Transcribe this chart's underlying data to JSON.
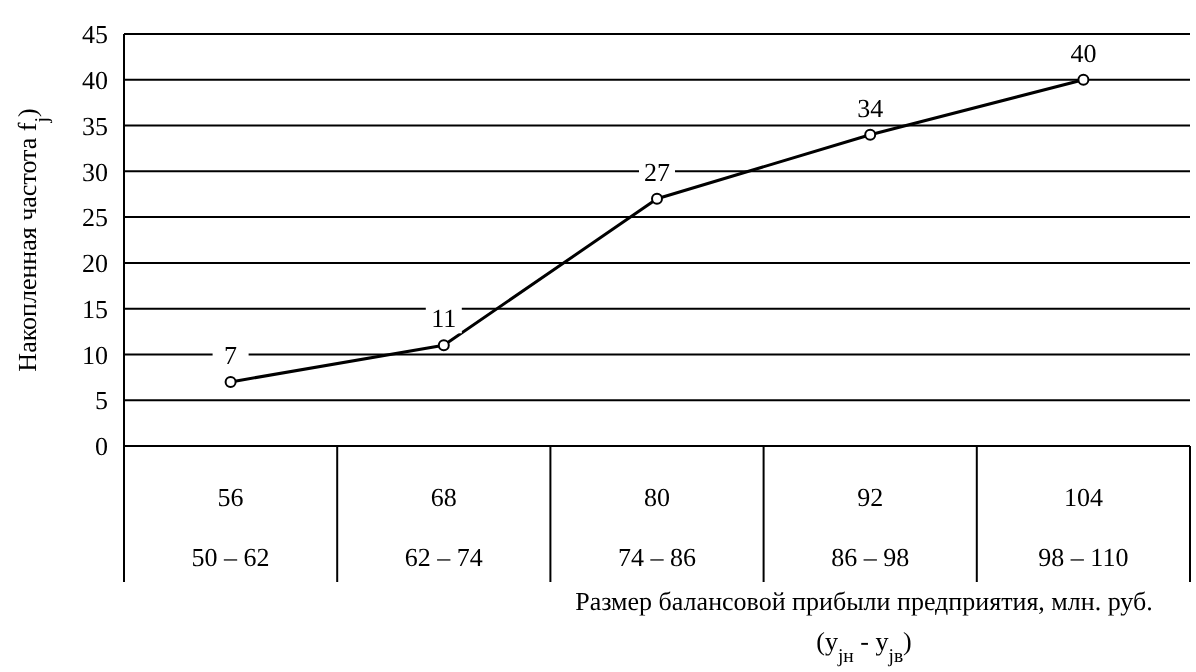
{
  "chart_data": {
    "type": "line",
    "categories": [
      "56\n50 – 62",
      "68\n62 – 74",
      "80\n74 – 86",
      "92\n86 – 98",
      "104\n98 – 110"
    ],
    "values": [
      7,
      11,
      27,
      34,
      40
    ],
    "color": "#000000",
    "data_labels": true,
    "marker": "circle",
    "line_style": "solid",
    "ylim": [
      0,
      45
    ],
    "yticks": [
      0,
      5,
      10,
      15,
      20,
      25,
      30,
      35,
      40,
      45
    ],
    "grid": "y",
    "ylabel": "Накопленная частота f$_{j}$)",
    "xlabel": "Размер балансовой прибыли предприятия, млн. руб.\n(y$_{jн}$ - y$_{jв}$)"
  }
}
